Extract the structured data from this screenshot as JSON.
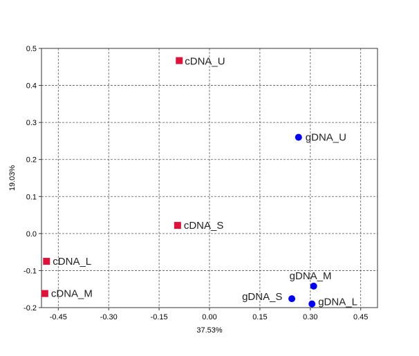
{
  "chart_data": {
    "type": "scatter",
    "xlabel": "37.53%",
    "ylabel": "19.03%",
    "xlim": [
      -0.5,
      0.5
    ],
    "ylim": [
      -0.2,
      0.5
    ],
    "xticks": [
      -0.45,
      -0.3,
      -0.15,
      0.0,
      0.15,
      0.3,
      0.45
    ],
    "xtick_labels": [
      "-0.45",
      "-0.30",
      "-0.15",
      "0.00",
      "0.15",
      "0.30",
      "0.45"
    ],
    "yticks": [
      -0.2,
      -0.1,
      0.0,
      0.1,
      0.2,
      0.3,
      0.4,
      0.5
    ],
    "ytick_labels": [
      "-0.2",
      "-0.1",
      "0.0",
      "0.1",
      "0.2",
      "0.3",
      "0.4",
      "0.5"
    ],
    "grid": true,
    "series": [
      {
        "marker": "square",
        "color": "#DC143C",
        "points": [
          {
            "label": "cDNA_U",
            "x": -0.09,
            "y": 0.467
          },
          {
            "label": "cDNA_S",
            "x": -0.095,
            "y": 0.022
          },
          {
            "label": "cDNA_L",
            "x": -0.485,
            "y": -0.075
          },
          {
            "label": "cDNA_M",
            "x": -0.49,
            "y": -0.162
          }
        ]
      },
      {
        "marker": "circle",
        "color": "#0000EE",
        "points": [
          {
            "label": "gDNA_U",
            "x": 0.265,
            "y": 0.26
          },
          {
            "label": "gDNA_M",
            "x": 0.31,
            "y": -0.142
          },
          {
            "label": "gDNA_S",
            "x": 0.245,
            "y": -0.176
          },
          {
            "label": "gDNA_L",
            "x": 0.305,
            "y": -0.19
          }
        ]
      }
    ]
  }
}
